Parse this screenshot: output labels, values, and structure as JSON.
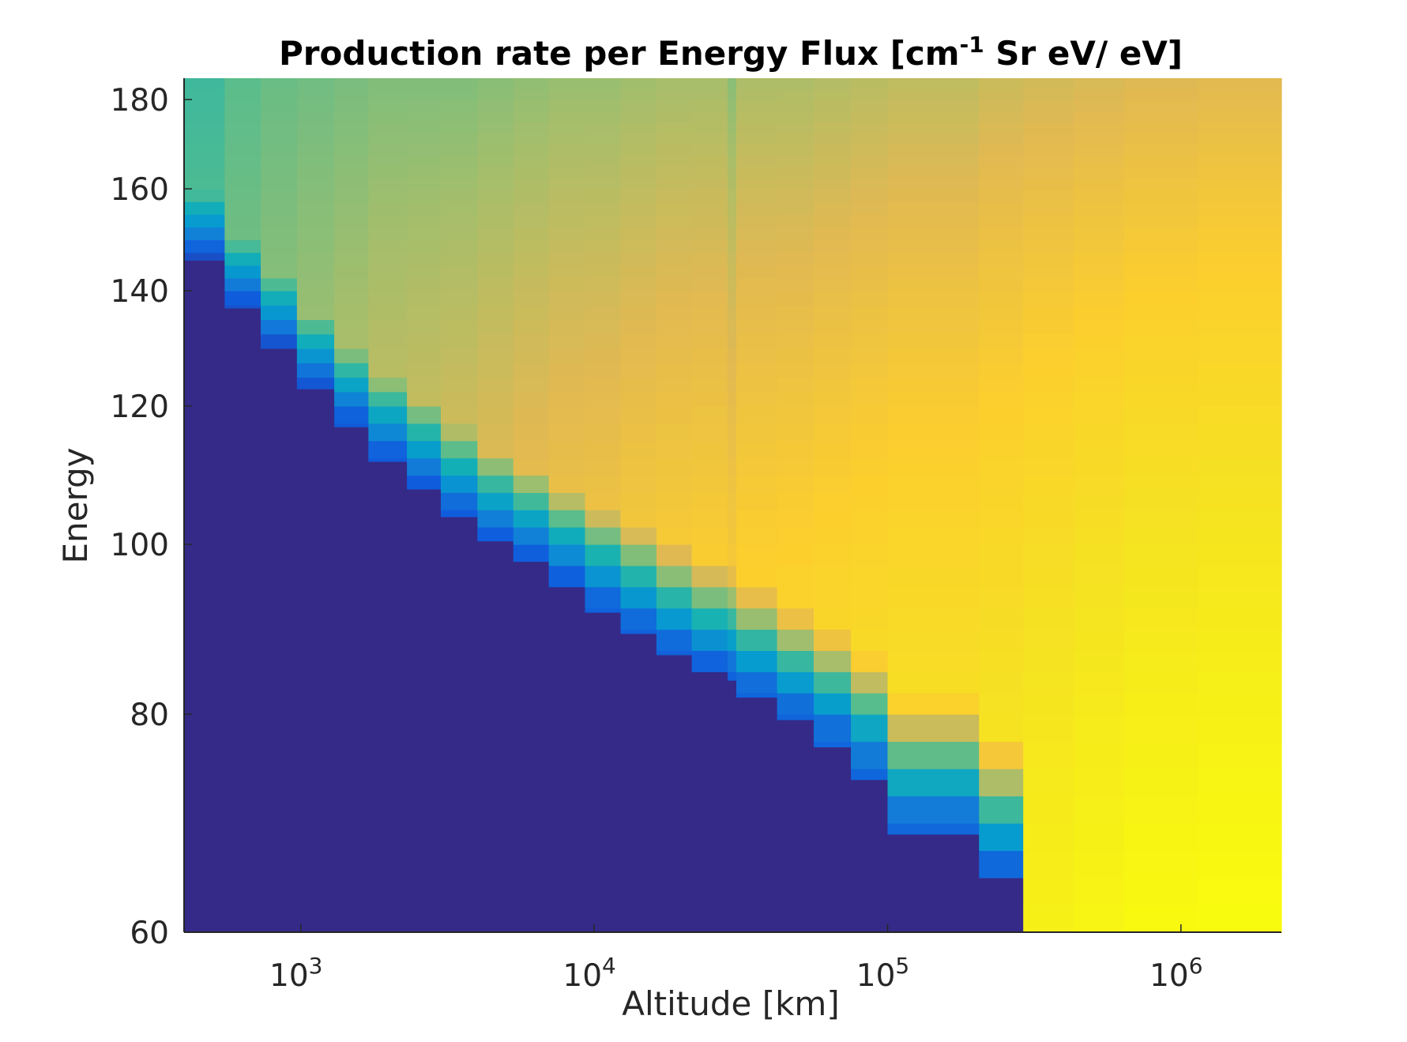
{
  "chart_data": {
    "type": "heatmap",
    "title": {
      "main": "Production rate per Energy Flux [cm",
      "superscript": "-1",
      "rest": " Sr eV/ eV]"
    },
    "xlabel": "Altitude [km]",
    "ylabel": "Energy",
    "x_scale": "log",
    "xlim": [
      400,
      2200000
    ],
    "ylim": [
      60,
      185
    ],
    "y_scale": "nonlinear",
    "y_ticks": [
      {
        "value": 60,
        "label": "60"
      },
      {
        "value": 80,
        "label": "80"
      },
      {
        "value": 100,
        "label": "100"
      },
      {
        "value": 120,
        "label": "120"
      },
      {
        "value": 140,
        "label": "140"
      },
      {
        "value": 160,
        "label": "160"
      },
      {
        "value": 180,
        "label": "180"
      }
    ],
    "x_ticks": [
      {
        "value": 1000,
        "base": "10",
        "exponent": "3"
      },
      {
        "value": 10000,
        "base": "10",
        "exponent": "4"
      },
      {
        "value": 100000,
        "base": "10",
        "exponent": "5"
      },
      {
        "value": 1000000,
        "base": "10",
        "exponent": "6"
      }
    ],
    "colormap": "parula",
    "zero_color": "#352a87",
    "x_bin_edges": [
      400,
      550,
      730,
      970,
      1300,
      1700,
      2300,
      3000,
      4000,
      5300,
      7000,
      9300,
      12300,
      16300,
      21500,
      28500,
      30500,
      42000,
      56000,
      75000,
      100000,
      205000,
      290000,
      430000,
      640000,
      1150000,
      2200000
    ],
    "cutoff_energy": [
      146,
      137,
      130,
      123,
      117,
      112,
      108,
      104,
      100.5,
      98,
      95,
      92,
      89.5,
      87,
      85,
      84,
      82,
      79.5,
      77,
      74,
      69,
      65,
      60,
      60,
      60,
      60
    ],
    "intensity": {
      "description_free": true,
      "at_top": [
        0.46,
        0.5,
        0.52,
        0.53,
        0.54,
        0.55,
        0.55,
        0.55,
        0.56,
        0.57,
        0.58,
        0.58,
        0.59,
        0.6,
        0.6,
        0.56,
        0.61,
        0.61,
        0.62,
        0.63,
        0.64,
        0.66,
        0.67,
        0.68,
        0.69,
        0.7
      ],
      "at_bottom": [
        0.56,
        0.6,
        0.63,
        0.66,
        0.69,
        0.72,
        0.74,
        0.76,
        0.78,
        0.8,
        0.82,
        0.83,
        0.85,
        0.86,
        0.87,
        0.86,
        0.88,
        0.89,
        0.9,
        0.91,
        0.92,
        0.93,
        0.95,
        0.97,
        0.99,
        1.0
      ]
    }
  }
}
